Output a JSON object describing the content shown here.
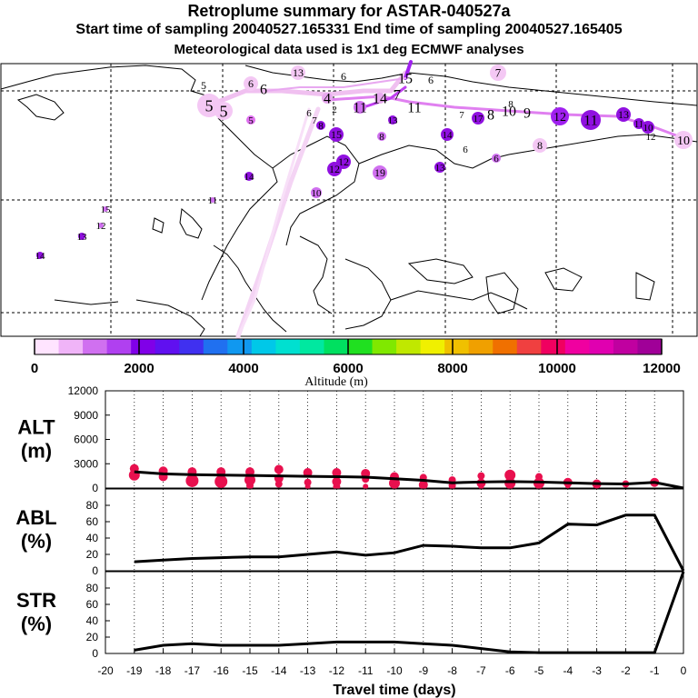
{
  "header": {
    "title": "Retroplume summary for ASTAR-040527a",
    "sampling": "Start time of sampling 20040527.165331     End time of sampling 20040527.165405",
    "meteo": "Meteorological data used is 1x1 deg ECMWF analyses"
  },
  "colors": {
    "alt_points": "#e8104e",
    "line": "#000000",
    "plume_light": "#f4c8f4",
    "plume_mid": "#d070f0",
    "plume_dark": "#9010e0"
  },
  "colorbar": {
    "label": "Altitude (m)",
    "ticks": [
      "0",
      "2000",
      "4000",
      "6000",
      "8000",
      "10000",
      "12000"
    ],
    "colors": [
      "#ffe4ff",
      "#f0b4f8",
      "#d070f0",
      "#b040f0",
      "#8000e8",
      "#6010f0",
      "#4030f0",
      "#2070f0",
      "#1098f0",
      "#00c8e8",
      "#00e0d0",
      "#00e8a0",
      "#00e060",
      "#20e020",
      "#80e800",
      "#c0e800",
      "#f0f000",
      "#f0c000",
      "#f0a000",
      "#f07000",
      "#f04040",
      "#f00060",
      "#f000a0",
      "#e000b0",
      "#c000a0",
      "#a00098"
    ]
  },
  "map": {
    "labels": [
      {
        "n": "13",
        "x": 328,
        "y": 80,
        "s": 12,
        "c": "#f4c8f4",
        "r": 8
      },
      {
        "n": "6",
        "x": 378,
        "y": 84,
        "s": 12,
        "c": "#ffffff",
        "r": 0
      },
      {
        "n": "7",
        "x": 548,
        "y": 80,
        "s": 13,
        "c": "#f4c8f4",
        "r": 9
      },
      {
        "n": "6",
        "x": 474,
        "y": 88,
        "s": 12,
        "c": "#ffffff",
        "r": 0
      },
      {
        "n": "5",
        "x": 224,
        "y": 94,
        "s": 12,
        "c": "#ffffff",
        "r": 0
      },
      {
        "n": "6",
        "x": 276,
        "y": 92,
        "s": 12,
        "c": "#f4c8f4",
        "r": 8
      },
      {
        "n": "6",
        "x": 290,
        "y": 98,
        "s": 16,
        "c": "#ffffff",
        "r": 0
      },
      {
        "n": "15",
        "x": 446,
        "y": 86,
        "s": 16,
        "c": "#ffffff",
        "r": 0
      },
      {
        "n": "5",
        "x": 230,
        "y": 116,
        "s": 18,
        "c": "#f4c8f4",
        "r": 13
      },
      {
        "n": "5",
        "x": 246,
        "y": 122,
        "s": 18,
        "c": "#f4c8f4",
        "r": 10
      },
      {
        "n": "4",
        "x": 360,
        "y": 108,
        "s": 16,
        "c": "#e8a8f0",
        "r": 6
      },
      {
        "n": "14",
        "x": 418,
        "y": 108,
        "s": 16,
        "c": "#e8a8f0",
        "r": 6
      },
      {
        "n": "7",
        "x": 437,
        "y": 104,
        "s": 16,
        "c": "#ffffff",
        "r": 0
      },
      {
        "n": "2",
        "x": 368,
        "y": 120,
        "s": 11,
        "c": "#ffffff",
        "r": 0
      },
      {
        "n": "11",
        "x": 396,
        "y": 118,
        "s": 16,
        "c": "#d070f0",
        "r": 7
      },
      {
        "n": "11",
        "x": 456,
        "y": 118,
        "s": 16,
        "c": "#ffffff",
        "r": 0
      },
      {
        "n": "6",
        "x": 340,
        "y": 124,
        "s": 11,
        "c": "#ffffff",
        "r": 0
      },
      {
        "n": "7",
        "x": 346,
        "y": 132,
        "s": 11,
        "c": "#ffffff",
        "r": 0
      },
      {
        "n": "7",
        "x": 508,
        "y": 126,
        "s": 11,
        "c": "#ffffff",
        "r": 0
      },
      {
        "n": "8",
        "x": 540,
        "y": 126,
        "s": 16,
        "c": "#ffffff",
        "r": 0
      },
      {
        "n": "10",
        "x": 560,
        "y": 122,
        "s": 16,
        "c": "#ffffff",
        "r": 0
      },
      {
        "n": "9",
        "x": 580,
        "y": 124,
        "s": 16,
        "c": "#ffffff",
        "r": 0
      },
      {
        "n": "8",
        "x": 562,
        "y": 114,
        "s": 11,
        "c": "#ffffff",
        "r": 0
      },
      {
        "n": "12",
        "x": 616,
        "y": 128,
        "s": 14,
        "c": "#a020f0",
        "r": 10
      },
      {
        "n": "11",
        "x": 650,
        "y": 132,
        "s": 16,
        "c": "#9010e0",
        "r": 11
      },
      {
        "n": "13",
        "x": 686,
        "y": 126,
        "s": 12,
        "c": "#9010e0",
        "r": 8
      },
      {
        "n": "11",
        "x": 703,
        "y": 136,
        "s": 11,
        "c": "#9010e0",
        "r": 6
      },
      {
        "n": "10",
        "x": 713,
        "y": 140,
        "s": 11,
        "c": "#9010e0",
        "r": 7
      },
      {
        "n": "10",
        "x": 752,
        "y": 154,
        "s": 14,
        "c": "#f4c8f4",
        "r": 10
      },
      {
        "n": "12",
        "x": 716,
        "y": 150,
        "s": 11,
        "c": "#ffffff",
        "r": 0
      },
      {
        "n": "17",
        "x": 526,
        "y": 130,
        "s": 11,
        "c": "#9010e0",
        "r": 7
      },
      {
        "n": "5",
        "x": 276,
        "y": 132,
        "s": 11,
        "c": "#e070f0",
        "r": 5
      },
      {
        "n": "13",
        "x": 432,
        "y": 132,
        "s": 11,
        "c": "#9010e0",
        "r": 5
      },
      {
        "n": "8",
        "x": 353,
        "y": 138,
        "s": 11,
        "c": "#9010e0",
        "r": 5
      },
      {
        "n": "15",
        "x": 370,
        "y": 148,
        "s": 12,
        "c": "#9010e0",
        "r": 8
      },
      {
        "n": "8",
        "x": 420,
        "y": 150,
        "s": 11,
        "c": "#d070f0",
        "r": 5
      },
      {
        "n": "14",
        "x": 492,
        "y": 148,
        "s": 11,
        "c": "#9010e0",
        "r": 7
      },
      {
        "n": "8",
        "x": 594,
        "y": 160,
        "s": 12,
        "c": "#f4c8f4",
        "r": 8
      },
      {
        "n": "6",
        "x": 512,
        "y": 164,
        "s": 11,
        "c": "#ffffff",
        "r": 0
      },
      {
        "n": "6",
        "x": 546,
        "y": 174,
        "s": 11,
        "c": "#d070f0",
        "r": 5
      },
      {
        "n": "12",
        "x": 378,
        "y": 178,
        "s": 12,
        "c": "#9010e0",
        "r": 8
      },
      {
        "n": "12",
        "x": 368,
        "y": 186,
        "s": 12,
        "c": "#9010e0",
        "r": 8
      },
      {
        "n": "19",
        "x": 418,
        "y": 190,
        "s": 12,
        "c": "#d070f0",
        "r": 8
      },
      {
        "n": "13",
        "x": 484,
        "y": 184,
        "s": 11,
        "c": "#9010e0",
        "r": 6
      },
      {
        "n": "14",
        "x": 274,
        "y": 194,
        "s": 11,
        "c": "#9010e0",
        "r": 5
      },
      {
        "n": "10",
        "x": 348,
        "y": 212,
        "s": 11,
        "c": "#d070f0",
        "r": 6
      },
      {
        "n": "11",
        "x": 234,
        "y": 220,
        "s": 11,
        "c": "#d070f0",
        "r": 3
      },
      {
        "n": "15",
        "x": 116,
        "y": 230,
        "s": 11,
        "c": "#d070f0",
        "r": 3
      },
      {
        "n": "12",
        "x": 111,
        "y": 248,
        "s": 11,
        "c": "#d070f0",
        "r": 3
      },
      {
        "n": "13",
        "x": 90,
        "y": 260,
        "s": 11,
        "c": "#9010e0",
        "r": 4
      },
      {
        "n": "14",
        "x": 44,
        "y": 281,
        "s": 11,
        "c": "#9010e0",
        "r": 4
      }
    ]
  },
  "chart_data": [
    {
      "type": "scatter",
      "name": "ALT",
      "ylabel": "ALT (m)",
      "ylabel_lines": [
        "ALT",
        "(m)"
      ],
      "ylim": [
        0,
        12000
      ],
      "yticks": [
        "12000",
        "9000",
        "6000",
        "3000",
        "0"
      ],
      "ytick_values": [
        12000,
        9000,
        6000,
        3000,
        0
      ],
      "xlim": [
        -20,
        0
      ],
      "mean_line": {
        "x": [
          -19,
          -18,
          -17,
          -16,
          -15,
          -14,
          -13,
          -12,
          -11,
          -10,
          -9,
          -8,
          -7,
          -6,
          -5,
          -4,
          -3,
          -2,
          -1,
          0
        ],
        "y": [
          2000,
          1750,
          1650,
          1600,
          1550,
          1500,
          1450,
          1400,
          1350,
          1150,
          950,
          650,
          750,
          800,
          750,
          650,
          550,
          500,
          700,
          0
        ]
      },
      "points": [
        {
          "x": -19,
          "y": 2400,
          "r": 5
        },
        {
          "x": -19,
          "y": 1600,
          "r": 6
        },
        {
          "x": -18,
          "y": 2100,
          "r": 5
        },
        {
          "x": -18,
          "y": 1400,
          "r": 5
        },
        {
          "x": -17,
          "y": 2000,
          "r": 5
        },
        {
          "x": -17,
          "y": 1300,
          "r": 5
        },
        {
          "x": -17,
          "y": 900,
          "r": 7
        },
        {
          "x": -16,
          "y": 2000,
          "r": 5
        },
        {
          "x": -16,
          "y": 1300,
          "r": 4
        },
        {
          "x": -16,
          "y": 800,
          "r": 7
        },
        {
          "x": -15,
          "y": 2000,
          "r": 5
        },
        {
          "x": -15,
          "y": 1000,
          "r": 6
        },
        {
          "x": -15,
          "y": 300,
          "r": 4
        },
        {
          "x": -14,
          "y": 2300,
          "r": 5
        },
        {
          "x": -14,
          "y": 1200,
          "r": 5
        },
        {
          "x": -14,
          "y": 500,
          "r": 4
        },
        {
          "x": -13,
          "y": 1900,
          "r": 5
        },
        {
          "x": -13,
          "y": 700,
          "r": 4
        },
        {
          "x": -13,
          "y": 200,
          "r": 3
        },
        {
          "x": -12,
          "y": 1900,
          "r": 5
        },
        {
          "x": -12,
          "y": 800,
          "r": 5
        },
        {
          "x": -12,
          "y": 200,
          "r": 4
        },
        {
          "x": -11,
          "y": 1800,
          "r": 5
        },
        {
          "x": -11,
          "y": 1100,
          "r": 4
        },
        {
          "x": -11,
          "y": 200,
          "r": 3
        },
        {
          "x": -10,
          "y": 1400,
          "r": 5
        },
        {
          "x": -10,
          "y": 1100,
          "r": 4
        },
        {
          "x": -10,
          "y": 600,
          "r": 6
        },
        {
          "x": -10,
          "y": 200,
          "r": 3
        },
        {
          "x": -9,
          "y": 1300,
          "r": 4
        },
        {
          "x": -9,
          "y": 400,
          "r": 5
        },
        {
          "x": -8,
          "y": 1000,
          "r": 4
        },
        {
          "x": -8,
          "y": 300,
          "r": 4
        },
        {
          "x": -7,
          "y": 1500,
          "r": 4
        },
        {
          "x": -7,
          "y": 600,
          "r": 5
        },
        {
          "x": -7,
          "y": 200,
          "r": 3
        },
        {
          "x": -6,
          "y": 1600,
          "r": 6
        },
        {
          "x": -6,
          "y": 600,
          "r": 6
        },
        {
          "x": -6,
          "y": 300,
          "r": 4
        },
        {
          "x": -5,
          "y": 1400,
          "r": 4
        },
        {
          "x": -5,
          "y": 600,
          "r": 6
        },
        {
          "x": -5,
          "y": 300,
          "r": 4
        },
        {
          "x": -4,
          "y": 700,
          "r": 5
        },
        {
          "x": -4,
          "y": 300,
          "r": 3
        },
        {
          "x": -3,
          "y": 500,
          "r": 5
        },
        {
          "x": -2,
          "y": 500,
          "r": 4
        },
        {
          "x": -1,
          "y": 700,
          "r": 5
        }
      ]
    },
    {
      "type": "line",
      "name": "ABL",
      "ylabel": "ABL (%)",
      "ylabel_lines": [
        "ABL",
        "(%)"
      ],
      "ylim": [
        0,
        100
      ],
      "yticks": [
        "80",
        "60",
        "40",
        "20",
        "0"
      ],
      "ytick_values": [
        80,
        60,
        40,
        20,
        0
      ],
      "xlim": [
        -20,
        0
      ],
      "x": [
        -19,
        -18,
        -17,
        -16,
        -15,
        -14,
        -13,
        -12,
        -11,
        -10,
        -9,
        -8,
        -7,
        -6,
        -5,
        -4,
        -3,
        -2,
        -1,
        0
      ],
      "y": [
        11,
        13,
        15,
        16,
        17,
        17,
        20,
        23,
        19,
        22,
        31,
        30,
        28,
        28,
        34,
        57,
        56,
        68,
        68,
        0
      ]
    },
    {
      "type": "line",
      "name": "STR",
      "ylabel": "STR (%)",
      "ylabel_lines": [
        "STR",
        "(%)"
      ],
      "ylim": [
        0,
        100
      ],
      "yticks": [
        "80",
        "60",
        "40",
        "20",
        "0"
      ],
      "ytick_values": [
        80,
        60,
        40,
        20,
        0
      ],
      "xlim": [
        -20,
        0
      ],
      "xticks": [
        "-20",
        "-19",
        "-18",
        "-17",
        "-16",
        "-15",
        "-14",
        "-13",
        "-12",
        "-11",
        "-10",
        "-9",
        "-8",
        "-7",
        "-6",
        "-5",
        "-4",
        "-3",
        "-2",
        "-1",
        "0"
      ],
      "xtick_values": [
        -20,
        -19,
        -18,
        -17,
        -16,
        -15,
        -14,
        -13,
        -12,
        -11,
        -10,
        -9,
        -8,
        -7,
        -6,
        -5,
        -4,
        -3,
        -2,
        -1,
        0
      ],
      "xlabel": "Travel time (days)",
      "x": [
        -19,
        -18,
        -17,
        -16,
        -15,
        -14,
        -13,
        -12,
        -11,
        -10,
        -9,
        -8,
        -7,
        -6,
        -5,
        -4,
        -3,
        -2,
        -1,
        0
      ],
      "y": [
        4,
        10,
        12,
        10,
        10,
        10,
        12,
        14,
        14,
        14,
        12,
        10,
        6,
        2,
        1,
        1,
        1,
        1,
        1,
        100
      ]
    }
  ]
}
